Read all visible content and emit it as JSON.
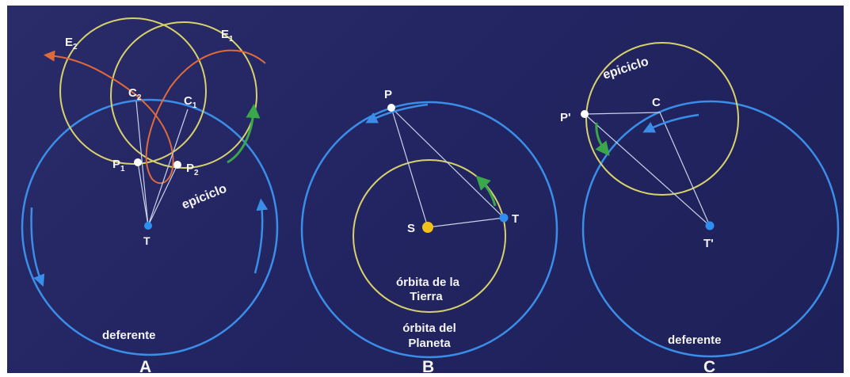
{
  "diagrams": {
    "A": {
      "panel_letter": "A",
      "labels": {
        "E2": "E",
        "E2_sub": "2",
        "E1": "E",
        "E1_sub": "1",
        "C2": "C",
        "C2_sub": "2",
        "C1": "C",
        "C1_sub": "1",
        "P1": "P",
        "P1_sub": "1",
        "P2": "P",
        "P2_sub": "2",
        "T": "T",
        "epiciclo": "epiciclo",
        "deferente": "deferente"
      }
    },
    "B": {
      "panel_letter": "B",
      "labels": {
        "P": "P",
        "S": "S",
        "T": "T",
        "orbita_tierra_1": "órbita de la",
        "orbita_tierra_2": "Tierra",
        "orbita_planeta_1": "órbita del",
        "orbita_planeta_2": "Planeta"
      }
    },
    "C": {
      "panel_letter": "C",
      "labels": {
        "epiciclo": "epiciclo",
        "P_prime": "P'",
        "C": "C",
        "T_prime": "T'",
        "deferente": "deferente"
      }
    }
  },
  "colors": {
    "background": "#24265f",
    "deferent_blue": "#3a8ee8",
    "epicycle_yellow": "#d8d26a",
    "arrow_green": "#3aa84a",
    "path_orange": "#e06a3a",
    "line_white": "#c8d2e8",
    "sun_yellow": "#f2c21a",
    "earth_blue": "#2f8ff0"
  }
}
